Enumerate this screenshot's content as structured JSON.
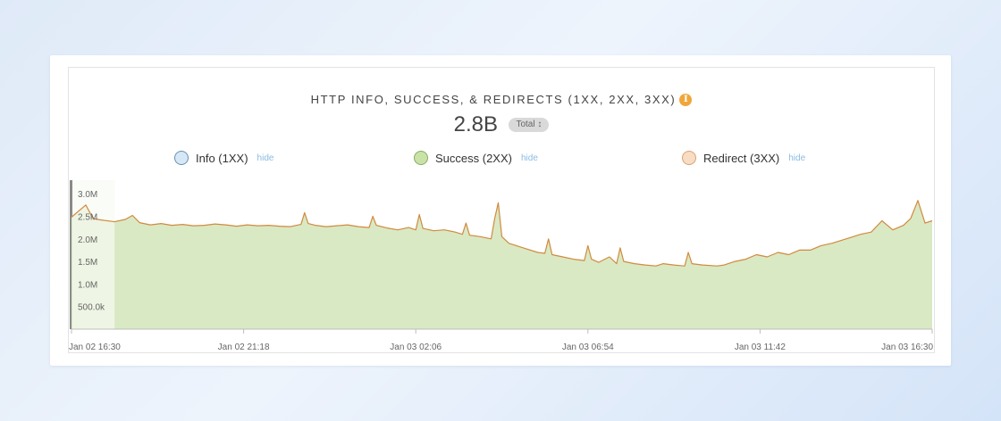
{
  "chart_data": {
    "type": "area",
    "title": "HTTP INFO, SUCCESS, & REDIRECTS (1XX, 2XX, 3XX)",
    "total": {
      "value": "2.8B",
      "selector_label": "Total ↕"
    },
    "legend": [
      {
        "name": "Info (1XX)",
        "color": "#cfe4f5",
        "border": "#6a8fb0",
        "action": "hide"
      },
      {
        "name": "Success (2XX)",
        "color": "#c8e2a8",
        "border": "#88ad62",
        "action": "hide"
      },
      {
        "name": "Redirect (3XX)",
        "color": "#f8dcc3",
        "border": "#d9a273",
        "action": "hide"
      }
    ],
    "y_ticks": [
      "3.0M",
      "2.5M",
      "2.0M",
      "1.5M",
      "1.0M",
      "500.0k"
    ],
    "y_tick_values": [
      3000000,
      2500000,
      2000000,
      1500000,
      1000000,
      500000
    ],
    "ylim": [
      0,
      3300000
    ],
    "x_ticks": [
      "Jan 02 16:30",
      "Jan 02 21:18",
      "Jan 03 02:06",
      "Jan 03 06:54",
      "Jan 03 11:42",
      "Jan 03 16:30"
    ],
    "x_tick_hours": [
      0,
      4.8,
      9.6,
      14.4,
      19.2,
      24
    ],
    "xlim_hours": [
      0,
      24
    ],
    "selection_hours": [
      0,
      1.2
    ],
    "series": [
      {
        "name": "Redirect (3XX)",
        "color": "#d28a3e",
        "fill": "#d9e9c4",
        "x_hours": [
          0,
          0.4,
          0.6,
          0.8,
          1.2,
          1.5,
          1.7,
          1.9,
          2.2,
          2.5,
          2.8,
          3.1,
          3.4,
          3.7,
          4.0,
          4.3,
          4.6,
          4.9,
          5.2,
          5.5,
          5.8,
          6.1,
          6.4,
          6.5,
          6.6,
          6.8,
          7.1,
          7.4,
          7.7,
          8.0,
          8.3,
          8.4,
          8.5,
          8.8,
          9.1,
          9.4,
          9.6,
          9.7,
          9.8,
          10.1,
          10.4,
          10.7,
          10.9,
          11.0,
          11.1,
          11.4,
          11.7,
          11.8,
          11.9,
          12.0,
          12.2,
          12.6,
          13.0,
          13.2,
          13.3,
          13.4,
          13.7,
          14.0,
          14.3,
          14.4,
          14.5,
          14.7,
          15.0,
          15.2,
          15.3,
          15.4,
          15.7,
          16.0,
          16.3,
          16.5,
          16.8,
          17.1,
          17.2,
          17.3,
          17.6,
          18.0,
          18.2,
          18.5,
          18.8,
          19.1,
          19.4,
          19.7,
          20.0,
          20.3,
          20.6,
          20.9,
          21.2,
          21.4,
          21.6,
          21.8,
          22.0,
          22.3,
          22.6,
          22.9,
          23.2,
          23.4,
          23.6,
          23.8,
          24.0
        ],
        "values": [
          2480000,
          2750000,
          2450000,
          2420000,
          2380000,
          2430000,
          2520000,
          2360000,
          2310000,
          2340000,
          2300000,
          2320000,
          2290000,
          2300000,
          2330000,
          2310000,
          2280000,
          2310000,
          2290000,
          2300000,
          2280000,
          2270000,
          2320000,
          2580000,
          2340000,
          2300000,
          2270000,
          2290000,
          2310000,
          2270000,
          2250000,
          2500000,
          2300000,
          2240000,
          2200000,
          2250000,
          2200000,
          2540000,
          2230000,
          2180000,
          2200000,
          2150000,
          2100000,
          2350000,
          2080000,
          2050000,
          2000000,
          2450000,
          2800000,
          2050000,
          1900000,
          1800000,
          1700000,
          1680000,
          2000000,
          1650000,
          1600000,
          1550000,
          1520000,
          1850000,
          1550000,
          1480000,
          1600000,
          1450000,
          1800000,
          1500000,
          1450000,
          1420000,
          1400000,
          1450000,
          1420000,
          1400000,
          1700000,
          1450000,
          1420000,
          1400000,
          1420000,
          1500000,
          1550000,
          1650000,
          1600000,
          1700000,
          1650000,
          1750000,
          1750000,
          1850000,
          1900000,
          1950000,
          2000000,
          2050000,
          2100000,
          2150000,
          2400000,
          2200000,
          2300000,
          2450000,
          2850000,
          2350000,
          2400000
        ]
      }
    ],
    "grid": false
  }
}
